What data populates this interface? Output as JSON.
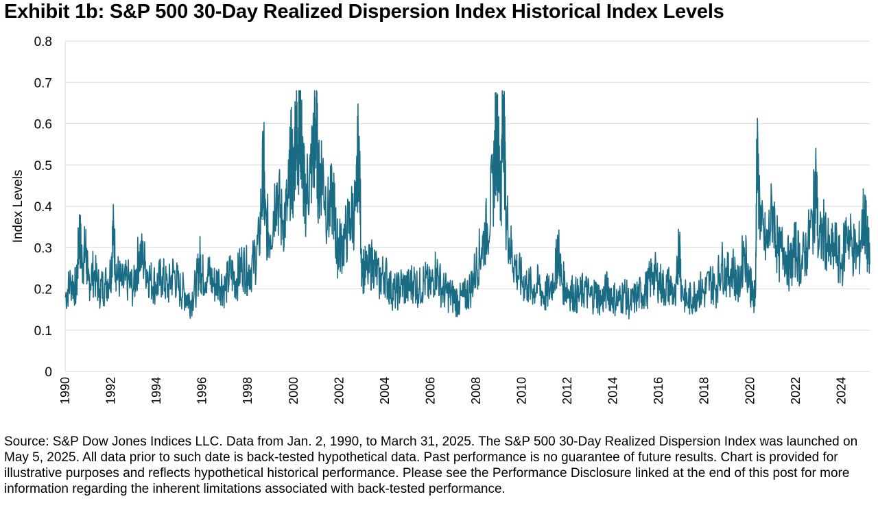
{
  "title": "Exhibit 1b: S&P 500 30-Day Realized Dispersion Index Historical Index Levels",
  "source": "Source: S&P Dow Jones Indices LLC. Data from Jan. 2, 1990, to March 31, 2025. The S&P 500 30-Day Realized Dispersion Index was launched on May 5, 2025. All data prior to such date is back-tested hypothetical data. Past performance is no guarantee of future results. Chart is provided for illustrative purposes and reflects hypothetical historical performance. Please see the Performance Disclosure linked at the end of this post for more information regarding the inherent limitations associated with back-tested performance.",
  "chart_data": {
    "type": "line",
    "ylabel": "Index Levels",
    "ylim": [
      0,
      0.8
    ],
    "yticks": [
      "0",
      "0.1",
      "0.2",
      "0.3",
      "0.4",
      "0.5",
      "0.6",
      "0.7",
      "0.8"
    ],
    "xlim": [
      1990.0,
      2025.25
    ],
    "xticks": [
      "1990",
      "1992",
      "1994",
      "1996",
      "1998",
      "2000",
      "2002",
      "2004",
      "2006",
      "2008",
      "2010",
      "2012",
      "2014",
      "2016",
      "2018",
      "2020",
      "2022",
      "2024"
    ],
    "grid": "horizontal",
    "line_color": "#1a6b84",
    "series": [
      {
        "x": [
          1990.0,
          1990.25,
          1990.5,
          1990.62,
          1990.75,
          1990.9,
          1991.0,
          1991.25,
          1991.5,
          1991.75,
          1992.0,
          1992.1,
          1992.25,
          1992.5,
          1992.75,
          1993.0,
          1993.25,
          1993.5,
          1993.75,
          1994.0,
          1994.25,
          1994.5,
          1994.75,
          1995.0,
          1995.25,
          1995.5,
          1995.75,
          1995.9,
          1996.0,
          1996.25,
          1996.5,
          1996.75,
          1997.0,
          1997.25,
          1997.5,
          1997.75,
          1998.0,
          1998.25,
          1998.5,
          1998.7,
          1998.75,
          1999.0,
          1999.25,
          1999.5,
          1999.75,
          1999.9,
          2000.0,
          2000.1,
          2000.2,
          2000.3,
          2000.4,
          2000.5,
          2000.75,
          2000.9,
          2001.0,
          2001.1,
          2001.25,
          2001.5,
          2001.75,
          2001.9,
          2002.0,
          2002.25,
          2002.5,
          2002.75,
          2002.85,
          2003.0,
          2003.25,
          2003.5,
          2003.75,
          2004.0,
          2004.25,
          2004.5,
          2004.75,
          2005.0,
          2005.25,
          2005.5,
          2005.75,
          2006.0,
          2006.25,
          2006.5,
          2006.75,
          2007.0,
          2007.25,
          2007.5,
          2007.75,
          2008.0,
          2008.25,
          2008.5,
          2008.75,
          2008.9,
          2009.0,
          2009.1,
          2009.2,
          2009.3,
          2009.5,
          2009.75,
          2010.0,
          2010.25,
          2010.5,
          2010.75,
          2011.0,
          2011.25,
          2011.5,
          2011.6,
          2011.75,
          2012.0,
          2012.25,
          2012.5,
          2012.75,
          2013.0,
          2013.25,
          2013.5,
          2013.75,
          2014.0,
          2014.25,
          2014.5,
          2014.75,
          2015.0,
          2015.25,
          2015.5,
          2015.75,
          2016.0,
          2016.25,
          2016.5,
          2016.75,
          2016.9,
          2017.0,
          2017.25,
          2017.5,
          2017.75,
          2018.0,
          2018.25,
          2018.5,
          2018.75,
          2019.0,
          2019.25,
          2019.5,
          2019.75,
          2020.0,
          2020.1,
          2020.25,
          2020.3,
          2020.5,
          2020.75,
          2021.0,
          2021.25,
          2021.5,
          2021.75,
          2022.0,
          2022.25,
          2022.5,
          2022.75,
          2022.9,
          2023.0,
          2023.25,
          2023.5,
          2023.75,
          2024.0,
          2024.25,
          2024.5,
          2024.75,
          2025.0,
          2025.1,
          2025.25
        ],
        "y": [
          0.18,
          0.22,
          0.2,
          0.34,
          0.26,
          0.3,
          0.22,
          0.24,
          0.2,
          0.21,
          0.24,
          0.34,
          0.24,
          0.21,
          0.22,
          0.2,
          0.29,
          0.26,
          0.22,
          0.21,
          0.23,
          0.2,
          0.24,
          0.2,
          0.19,
          0.17,
          0.21,
          0.27,
          0.23,
          0.24,
          0.21,
          0.22,
          0.2,
          0.24,
          0.22,
          0.26,
          0.24,
          0.26,
          0.31,
          0.52,
          0.36,
          0.33,
          0.45,
          0.36,
          0.4,
          0.52,
          0.45,
          0.61,
          0.55,
          0.62,
          0.5,
          0.42,
          0.48,
          0.55,
          0.6,
          0.45,
          0.5,
          0.38,
          0.42,
          0.3,
          0.3,
          0.32,
          0.37,
          0.4,
          0.57,
          0.25,
          0.24,
          0.27,
          0.22,
          0.24,
          0.2,
          0.19,
          0.21,
          0.2,
          0.22,
          0.2,
          0.22,
          0.2,
          0.25,
          0.2,
          0.19,
          0.18,
          0.17,
          0.18,
          0.2,
          0.25,
          0.3,
          0.35,
          0.45,
          0.6,
          0.5,
          0.45,
          0.67,
          0.4,
          0.3,
          0.25,
          0.22,
          0.21,
          0.2,
          0.21,
          0.18,
          0.2,
          0.25,
          0.3,
          0.22,
          0.2,
          0.19,
          0.18,
          0.2,
          0.18,
          0.19,
          0.17,
          0.2,
          0.18,
          0.17,
          0.19,
          0.16,
          0.18,
          0.19,
          0.2,
          0.24,
          0.22,
          0.2,
          0.21,
          0.17,
          0.33,
          0.2,
          0.17,
          0.18,
          0.2,
          0.19,
          0.22,
          0.2,
          0.26,
          0.23,
          0.25,
          0.2,
          0.3,
          0.22,
          0.18,
          0.2,
          0.52,
          0.34,
          0.3,
          0.4,
          0.28,
          0.3,
          0.25,
          0.3,
          0.26,
          0.3,
          0.36,
          0.47,
          0.3,
          0.34,
          0.28,
          0.3,
          0.25,
          0.35,
          0.3,
          0.28,
          0.38,
          0.33,
          0.26
        ]
      }
    ]
  }
}
